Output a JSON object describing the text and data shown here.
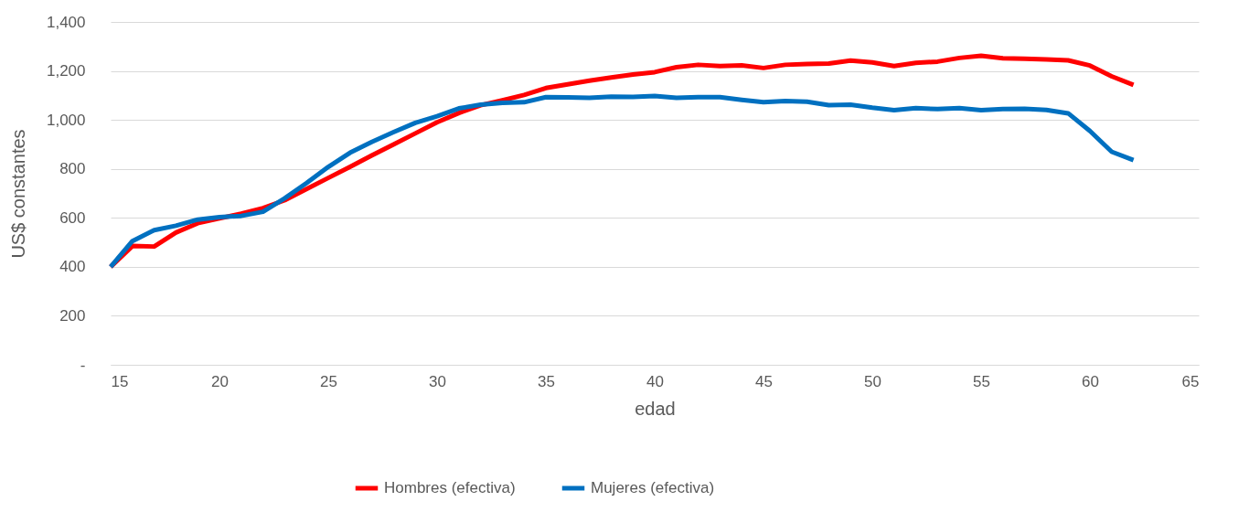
{
  "chart_data": {
    "type": "line",
    "xlabel": "edad",
    "ylabel": "US$ constantes",
    "x": [
      15,
      16,
      17,
      18,
      19,
      20,
      21,
      22,
      23,
      24,
      25,
      26,
      27,
      28,
      29,
      30,
      31,
      32,
      33,
      34,
      35,
      36,
      37,
      38,
      39,
      40,
      41,
      42,
      43,
      44,
      45,
      46,
      47,
      48,
      49,
      50,
      51,
      52,
      53,
      54,
      55,
      56,
      57,
      58,
      59,
      60,
      61,
      62
    ],
    "series": [
      {
        "name": "Hombres (efectiva)",
        "color": "#ff0000",
        "values": [
          400,
          485,
          483,
          540,
          578,
          598,
          617,
          640,
          672,
          718,
          763,
          808,
          855,
          900,
          945,
          990,
          1028,
          1060,
          1080,
          1102,
          1130,
          1145,
          1160,
          1173,
          1185,
          1195,
          1215,
          1225,
          1220,
          1223,
          1212,
          1225,
          1228,
          1230,
          1242,
          1235,
          1220,
          1233,
          1238,
          1253,
          1262,
          1252,
          1250,
          1247,
          1243,
          1222,
          1178,
          1143
        ]
      },
      {
        "name": "Mujeres (efectiva)",
        "color": "#0070c0",
        "values": [
          400,
          505,
          550,
          568,
          593,
          603,
          608,
          625,
          680,
          742,
          808,
          866,
          910,
          950,
          988,
          1015,
          1047,
          1062,
          1070,
          1072,
          1093,
          1092,
          1090,
          1095,
          1094,
          1098,
          1090,
          1093,
          1093,
          1082,
          1072,
          1077,
          1074,
          1060,
          1062,
          1050,
          1040,
          1048,
          1044,
          1048,
          1040,
          1044,
          1045,
          1041,
          1027,
          955,
          870,
          836
        ]
      }
    ],
    "xlim": [
      15,
      65
    ],
    "xticks": [
      15,
      20,
      25,
      30,
      35,
      40,
      45,
      50,
      55,
      60,
      65
    ],
    "ylim": [
      0,
      1400
    ],
    "yticks": [
      {
        "value": 0,
        "label": "-"
      },
      {
        "value": 200,
        "label": "200"
      },
      {
        "value": 400,
        "label": "400"
      },
      {
        "value": 600,
        "label": "600"
      },
      {
        "value": 800,
        "label": "800"
      },
      {
        "value": 1000,
        "label": "1,000"
      },
      {
        "value": 1200,
        "label": "1,200"
      },
      {
        "value": 1400,
        "label": "1,400"
      }
    ],
    "grid": "y",
    "legend": "bottom",
    "marker": "none",
    "line_style": "solid"
  }
}
